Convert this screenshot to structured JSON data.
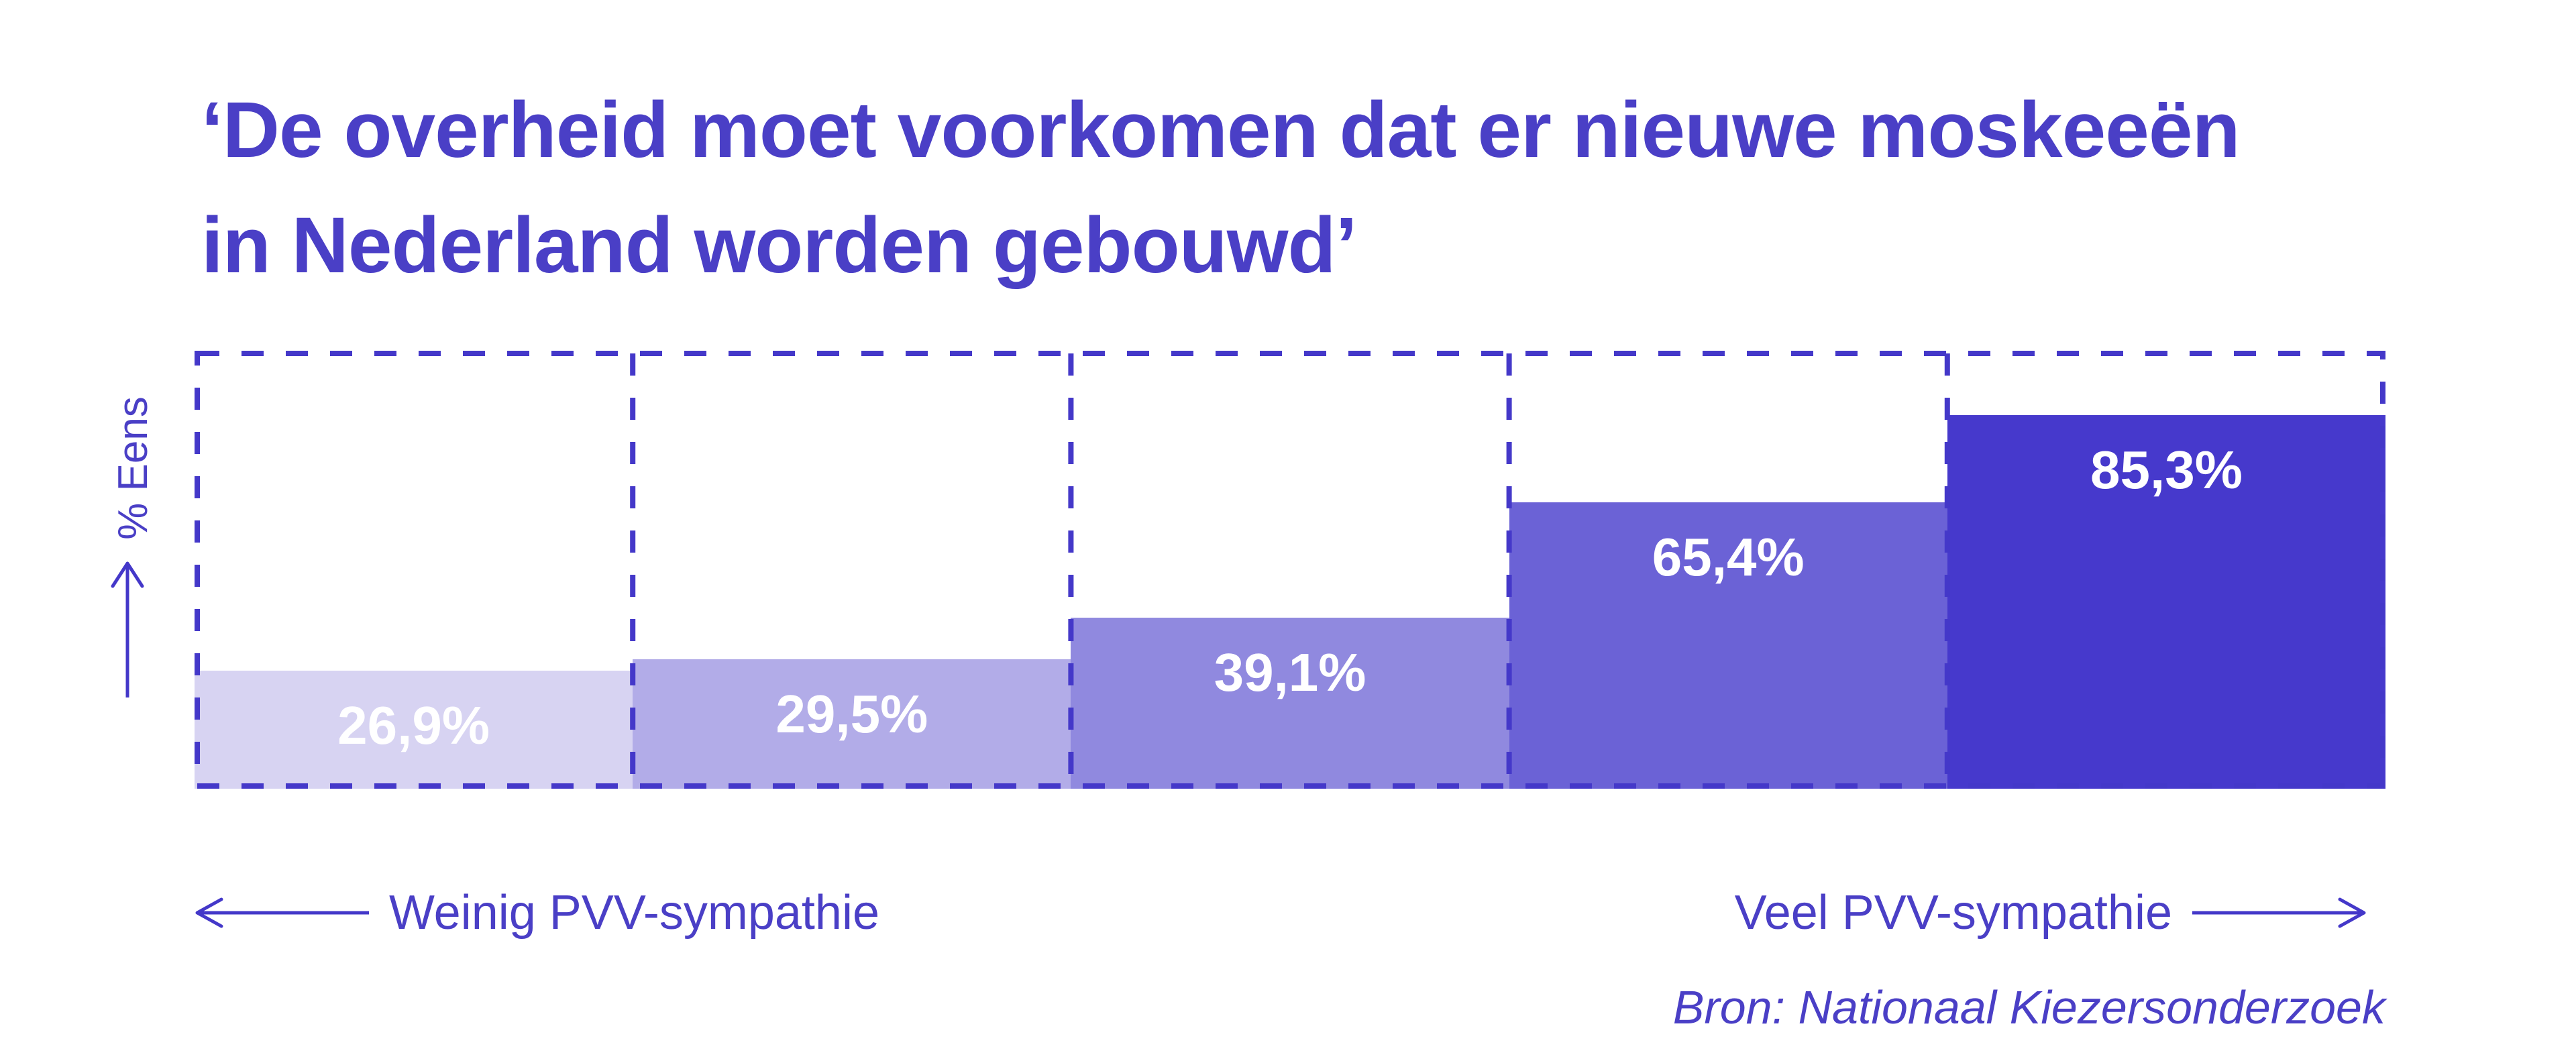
{
  "title": {
    "line1": "‘De overheid moet voorkomen dat er nieuwe moskeeën",
    "line2": "in Nederland worden gebouwd’"
  },
  "source": "Bron: Nationaal Kiezersonderzoek",
  "colors": {
    "primary_text": "#4A3FC6",
    "dash_line": "#4438C9",
    "bar_label": "#FFFFFF"
  },
  "chart_data": {
    "type": "bar",
    "title": "‘De overheid moet voorkomen dat er nieuwe moskeeën in Nederland worden gebouwd’",
    "subtitle": "",
    "ylabel": "% Eens",
    "xlabel": "",
    "ylim": [
      0,
      100
    ],
    "grid": "dashed box with dashed column dividers, no ticks",
    "legend": "none",
    "x_axis_left_label": "Weinig PVV-sympathie",
    "x_axis_right_label": "Veel PVV-sympathie",
    "values": [
      26.9,
      29.5,
      39.1,
      65.4,
      85.3
    ],
    "labels": [
      "26,9%",
      "29,5%",
      "39,1%",
      "65,4%",
      "85,3%"
    ],
    "colors": [
      "#D7D3F2",
      "#B2ACE8",
      "#9089DF",
      "#6B62D6",
      "#4639CC"
    ],
    "source": "Bron: Nationaal Kiezersonderzoek"
  }
}
